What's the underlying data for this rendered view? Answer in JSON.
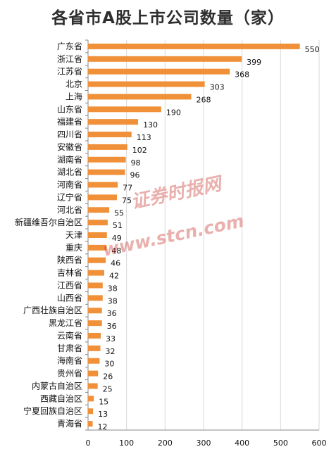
{
  "chart_data": {
    "type": "bar",
    "orientation": "horizontal",
    "title": "各省市A股上市公司数量（家）",
    "categories": [
      "广东省",
      "浙江省",
      "江苏省",
      "北京",
      "上海",
      "山东省",
      "福建省",
      "四川省",
      "安徽省",
      "湖南省",
      "湖北省",
      "河南省",
      "辽宁省",
      "河北省",
      "新疆维吾尔自治区",
      "天津",
      "重庆",
      "陕西省",
      "吉林省",
      "江西省",
      "山西省",
      "广西壮族自治区",
      "黑龙江省",
      "云南省",
      "甘肃省",
      "海南省",
      "贵州省",
      "内蒙古自治区",
      "西藏自治区",
      "宁夏回族自治区",
      "青海省"
    ],
    "values": [
      550,
      399,
      368,
      303,
      268,
      190,
      130,
      113,
      102,
      98,
      96,
      77,
      75,
      55,
      51,
      49,
      48,
      46,
      42,
      38,
      38,
      36,
      36,
      33,
      32,
      30,
      26,
      25,
      15,
      13,
      12
    ],
    "xlim": [
      0,
      600
    ],
    "xticks": [
      0,
      100,
      200,
      300,
      400,
      500,
      600
    ],
    "xlabel": "",
    "ylabel": "",
    "grid": "vertical",
    "bar_color": "#f0913a",
    "data_labels": true
  },
  "watermark": {
    "text_cn": "证券时报网",
    "text_url": "www.stcn.com",
    "color": "#c8332b"
  }
}
